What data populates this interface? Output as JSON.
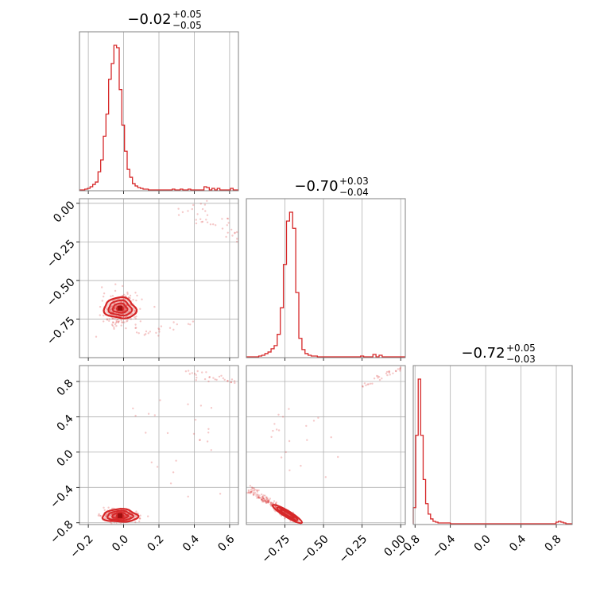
{
  "chart_data": {
    "type": "corner",
    "color": "#d62728",
    "grid": true,
    "panels": [
      {
        "kind": "hist1d",
        "xlim": [
          -0.25,
          0.65
        ],
        "title": {
          "median": "−0.02",
          "upper": "+0.05",
          "lower": "−0.05"
        },
        "bins_x": [
          -0.2125,
          -0.1975,
          -0.1825,
          -0.1675,
          -0.1525,
          -0.1375,
          -0.1225,
          -0.1075,
          -0.0925,
          -0.0775,
          -0.0625,
          -0.0475,
          -0.0325,
          -0.0175,
          -0.0025,
          0.0125,
          0.0275,
          0.0425,
          0.0575,
          0.0725,
          0.0875,
          0.1025,
          0.1175,
          0.1325,
          0.2825,
          0.3275,
          0.3725,
          0.4625,
          0.4775,
          0.5075,
          0.5375,
          0.6125
        ],
        "counts": [
          1,
          2,
          4,
          7,
          10,
          23,
          38,
          68,
          96,
          140,
          160,
          183,
          180,
          127,
          82,
          49,
          26,
          16,
          8,
          5,
          3,
          2,
          1,
          1,
          1,
          1,
          1,
          4,
          3,
          2,
          2,
          2
        ]
      },
      {
        "kind": "hist2d",
        "xlim": [
          -0.25,
          0.65
        ],
        "ylim": [
          -1.0,
          0.03
        ],
        "x_ticks": [
          -0.2,
          0.0,
          0.2,
          0.4,
          0.6
        ],
        "y_ticks": [
          "0.00",
          "−0.25",
          "−0.50",
          "−0.75"
        ],
        "y_tick_values": [
          0.0,
          -0.25,
          -0.5,
          -0.75
        ],
        "core": {
          "x": -0.02,
          "y": -0.68
        }
      },
      {
        "kind": "hist1d",
        "xlim": [
          -1.0,
          0.03
        ],
        "title": {
          "median": "−0.70",
          "upper": "+0.03",
          "lower": "−0.04"
        },
        "bins_x": [
          -0.91,
          -0.89,
          -0.87,
          -0.85,
          -0.83,
          -0.81,
          -0.79,
          -0.77,
          -0.75,
          -0.73,
          -0.71,
          -0.69,
          -0.67,
          -0.65,
          -0.63,
          -0.61,
          -0.59,
          -0.57,
          -0.55,
          -0.25,
          -0.17,
          -0.13
        ],
        "counts": [
          1,
          2,
          4,
          6,
          10,
          14,
          28,
          61,
          115,
          169,
          180,
          160,
          80,
          23,
          9,
          4,
          2,
          1,
          1,
          1,
          3,
          2
        ]
      },
      {
        "kind": "hist2d",
        "xlim": [
          -0.25,
          0.65
        ],
        "ylim": [
          -0.82,
          0.98
        ],
        "x_ticks": [
          "−0.2",
          "0.0",
          "0.2",
          "0.4",
          "0.6"
        ],
        "x_tick_values": [
          -0.2,
          0.0,
          0.2,
          0.4,
          0.6
        ],
        "y_ticks": [
          "0.8",
          "0.4",
          "0.0",
          "−0.4",
          "−0.8"
        ],
        "y_tick_values": [
          0.8,
          0.4,
          0.0,
          -0.4,
          -0.8
        ],
        "core": {
          "x": -0.02,
          "y": -0.72
        }
      },
      {
        "kind": "hist2d",
        "xlim": [
          -1.0,
          0.03
        ],
        "ylim": [
          -0.82,
          0.98
        ],
        "x_ticks": [
          "−0.75",
          "−0.50",
          "−0.25",
          "0.00"
        ],
        "x_tick_values": [
          -0.75,
          -0.5,
          -0.25,
          0.0
        ],
        "core": {
          "x": -0.7,
          "y": -0.72
        }
      },
      {
        "kind": "hist1d",
        "xlim": [
          -0.82,
          0.98
        ],
        "title": {
          "median": "−0.72",
          "upper": "+0.05",
          "lower": "−0.03"
        },
        "x_ticks": [
          "−0.8",
          "−0.4",
          "0.0",
          "0.4",
          "0.8"
        ],
        "x_tick_values": [
          -0.8,
          -0.4,
          0.0,
          0.4,
          0.8
        ],
        "bins_x": [
          -0.806,
          -0.778,
          -0.75,
          -0.722,
          -0.694,
          -0.666,
          -0.638,
          -0.61,
          -0.582,
          -0.554,
          -0.526,
          -0.498,
          -0.47,
          -0.442,
          -0.414,
          0.81,
          0.838,
          0.866,
          0.894
        ],
        "counts": [
          20,
          110,
          180,
          110,
          55,
          25,
          12,
          6,
          3,
          2,
          1,
          1,
          1,
          1,
          1,
          2,
          3,
          2,
          1
        ]
      }
    ]
  }
}
